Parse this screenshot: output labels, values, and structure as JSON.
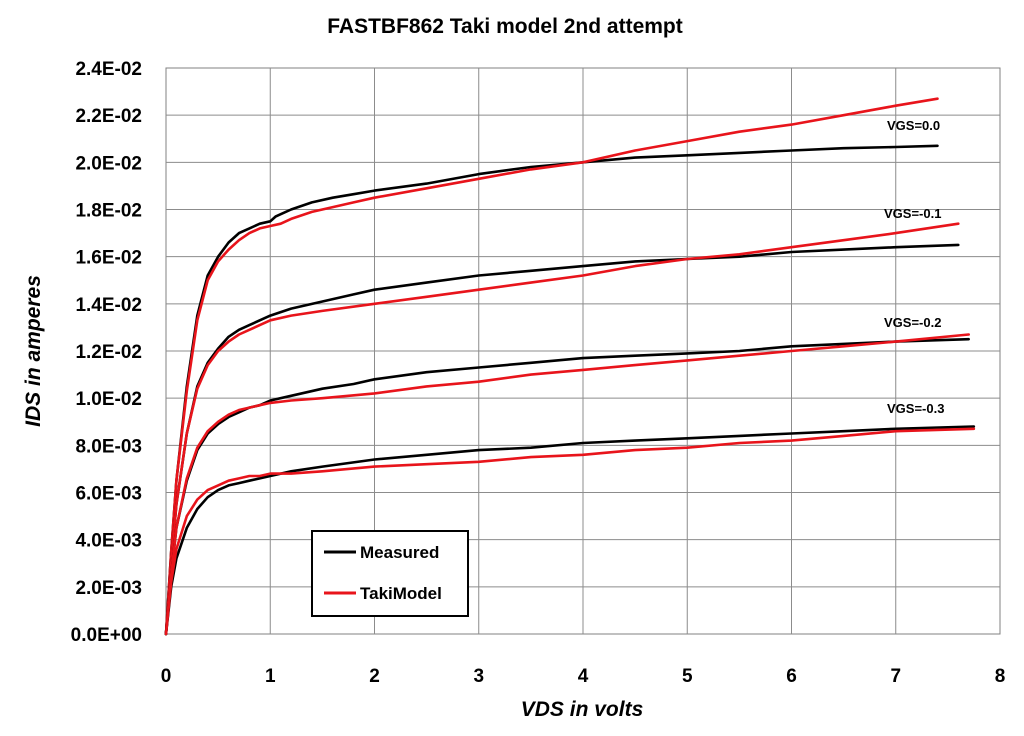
{
  "chart_data": {
    "type": "line",
    "title": "FASTBF862  Taki model   2nd attempt",
    "xlabel": "VDS  in volts",
    "ylabel": "IDS  in amperes",
    "xlim": [
      0,
      8
    ],
    "ylim": [
      0,
      0.024
    ],
    "x_ticks": [
      "0",
      "1",
      "2",
      "3",
      "4",
      "5",
      "6",
      "7",
      "8"
    ],
    "y_ticks": [
      "0.0E+00",
      "2.0E-03",
      "4.0E-03",
      "6.0E-03",
      "8.0E-03",
      "1.0E-02",
      "1.2E-02",
      "1.4E-02",
      "1.6E-02",
      "1.8E-02",
      "2.0E-02",
      "2.2E-02",
      "2.4E-02"
    ],
    "grid": true,
    "legend_position": "bottom-left",
    "legend": [
      {
        "label": "Measured",
        "color": "#000000"
      },
      {
        "label": "TakiModel",
        "color": "#e8141b"
      }
    ],
    "annotations": [
      "VGS=0.0",
      "VGS=-0.1",
      "VGS=-0.2",
      "VGS=-0.3"
    ],
    "series": [
      {
        "legend_entry": "Measured",
        "vgs": "VGS=0.0",
        "color": "#000000",
        "points": [
          [
            0,
            0
          ],
          [
            0.05,
            0.0035
          ],
          [
            0.1,
            0.0065
          ],
          [
            0.2,
            0.0105
          ],
          [
            0.3,
            0.0135
          ],
          [
            0.4,
            0.0152
          ],
          [
            0.5,
            0.016
          ],
          [
            0.6,
            0.0166
          ],
          [
            0.7,
            0.017
          ],
          [
            0.8,
            0.0172
          ],
          [
            0.9,
            0.0174
          ],
          [
            1.0,
            0.0175
          ],
          [
            1.05,
            0.0177
          ],
          [
            1.1,
            0.0178
          ],
          [
            1.2,
            0.018
          ],
          [
            1.4,
            0.0183
          ],
          [
            1.6,
            0.0185
          ],
          [
            1.8,
            0.01865
          ],
          [
            2.0,
            0.0188
          ],
          [
            2.5,
            0.0191
          ],
          [
            3.0,
            0.0195
          ],
          [
            3.5,
            0.0198
          ],
          [
            4.0,
            0.02
          ],
          [
            4.5,
            0.0202
          ],
          [
            5.0,
            0.0203
          ],
          [
            5.5,
            0.0204
          ],
          [
            6.0,
            0.0205
          ],
          [
            6.5,
            0.0206
          ],
          [
            7.0,
            0.02065
          ],
          [
            7.4,
            0.0207
          ]
        ]
      },
      {
        "legend_entry": "TakiModel",
        "vgs": "VGS=0.0",
        "color": "#e8141b",
        "points": [
          [
            0,
            0
          ],
          [
            0.05,
            0.0035
          ],
          [
            0.1,
            0.0065
          ],
          [
            0.2,
            0.0103
          ],
          [
            0.3,
            0.0133
          ],
          [
            0.4,
            0.015
          ],
          [
            0.5,
            0.0158
          ],
          [
            0.6,
            0.0163
          ],
          [
            0.7,
            0.0167
          ],
          [
            0.8,
            0.017
          ],
          [
            0.9,
            0.0172
          ],
          [
            1.0,
            0.0173
          ],
          [
            1.1,
            0.0174
          ],
          [
            1.2,
            0.0176
          ],
          [
            1.4,
            0.0179
          ],
          [
            1.6,
            0.0181
          ],
          [
            1.8,
            0.0183
          ],
          [
            2.0,
            0.0185
          ],
          [
            2.5,
            0.0189
          ],
          [
            3.0,
            0.0193
          ],
          [
            3.5,
            0.0197
          ],
          [
            4.0,
            0.02
          ],
          [
            4.5,
            0.0205
          ],
          [
            5.0,
            0.0209
          ],
          [
            5.5,
            0.0213
          ],
          [
            6.0,
            0.0216
          ],
          [
            6.5,
            0.022
          ],
          [
            7.0,
            0.0224
          ],
          [
            7.4,
            0.0227
          ]
        ]
      },
      {
        "legend_entry": "Measured",
        "vgs": "VGS=-0.1",
        "color": "#000000",
        "points": [
          [
            0,
            0
          ],
          [
            0.05,
            0.003
          ],
          [
            0.1,
            0.0055
          ],
          [
            0.2,
            0.0085
          ],
          [
            0.3,
            0.0105
          ],
          [
            0.4,
            0.0115
          ],
          [
            0.5,
            0.0121
          ],
          [
            0.6,
            0.0126
          ],
          [
            0.7,
            0.0129
          ],
          [
            0.8,
            0.0131
          ],
          [
            0.9,
            0.0133
          ],
          [
            1.0,
            0.0135
          ],
          [
            1.2,
            0.0138
          ],
          [
            1.5,
            0.0141
          ],
          [
            1.8,
            0.0144
          ],
          [
            2.0,
            0.0146
          ],
          [
            2.5,
            0.0149
          ],
          [
            3.0,
            0.0152
          ],
          [
            3.5,
            0.0154
          ],
          [
            4.0,
            0.0156
          ],
          [
            4.5,
            0.0158
          ],
          [
            5.0,
            0.0159
          ],
          [
            5.5,
            0.016
          ],
          [
            6.0,
            0.0162
          ],
          [
            6.5,
            0.0163
          ],
          [
            7.0,
            0.0164
          ],
          [
            7.6,
            0.0165
          ]
        ]
      },
      {
        "legend_entry": "TakiModel",
        "vgs": "VGS=-0.1",
        "color": "#e8141b",
        "points": [
          [
            0,
            0
          ],
          [
            0.05,
            0.003
          ],
          [
            0.1,
            0.0055
          ],
          [
            0.2,
            0.0085
          ],
          [
            0.3,
            0.0104
          ],
          [
            0.4,
            0.0114
          ],
          [
            0.5,
            0.012
          ],
          [
            0.6,
            0.0124
          ],
          [
            0.7,
            0.0127
          ],
          [
            0.8,
            0.0129
          ],
          [
            0.9,
            0.0131
          ],
          [
            1.0,
            0.0133
          ],
          [
            1.2,
            0.0135
          ],
          [
            1.5,
            0.0137
          ],
          [
            2.0,
            0.014
          ],
          [
            2.5,
            0.0143
          ],
          [
            3.0,
            0.0146
          ],
          [
            3.5,
            0.0149
          ],
          [
            4.0,
            0.0152
          ],
          [
            4.5,
            0.0156
          ],
          [
            5.0,
            0.0159
          ],
          [
            5.5,
            0.0161
          ],
          [
            6.0,
            0.0164
          ],
          [
            6.5,
            0.0167
          ],
          [
            7.0,
            0.017
          ],
          [
            7.6,
            0.0174
          ]
        ]
      },
      {
        "legend_entry": "Measured",
        "vgs": "VGS=-0.2",
        "color": "#000000",
        "points": [
          [
            0,
            0
          ],
          [
            0.05,
            0.0025
          ],
          [
            0.1,
            0.0045
          ],
          [
            0.2,
            0.0065
          ],
          [
            0.3,
            0.0078
          ],
          [
            0.4,
            0.0085
          ],
          [
            0.5,
            0.0089
          ],
          [
            0.6,
            0.0092
          ],
          [
            0.7,
            0.0094
          ],
          [
            0.8,
            0.0096
          ],
          [
            0.9,
            0.0097
          ],
          [
            1.0,
            0.0099
          ],
          [
            1.2,
            0.0101
          ],
          [
            1.5,
            0.0104
          ],
          [
            1.8,
            0.0106
          ],
          [
            2.0,
            0.0108
          ],
          [
            2.5,
            0.0111
          ],
          [
            3.0,
            0.0113
          ],
          [
            3.5,
            0.0115
          ],
          [
            4.0,
            0.0117
          ],
          [
            4.5,
            0.0118
          ],
          [
            5.0,
            0.0119
          ],
          [
            5.5,
            0.012
          ],
          [
            6.0,
            0.0122
          ],
          [
            6.5,
            0.0123
          ],
          [
            7.0,
            0.0124
          ],
          [
            7.7,
            0.0125
          ]
        ]
      },
      {
        "legend_entry": "TakiModel",
        "vgs": "VGS=-0.2",
        "color": "#e8141b",
        "points": [
          [
            0,
            0
          ],
          [
            0.05,
            0.0025
          ],
          [
            0.1,
            0.0045
          ],
          [
            0.2,
            0.0066
          ],
          [
            0.3,
            0.0079
          ],
          [
            0.4,
            0.0086
          ],
          [
            0.5,
            0.009
          ],
          [
            0.6,
            0.0093
          ],
          [
            0.7,
            0.0095
          ],
          [
            0.8,
            0.0096
          ],
          [
            0.9,
            0.0097
          ],
          [
            1.0,
            0.0098
          ],
          [
            1.2,
            0.0099
          ],
          [
            1.5,
            0.01
          ],
          [
            2.0,
            0.0102
          ],
          [
            2.5,
            0.0105
          ],
          [
            3.0,
            0.0107
          ],
          [
            3.5,
            0.011
          ],
          [
            4.0,
            0.0112
          ],
          [
            4.5,
            0.0114
          ],
          [
            5.0,
            0.0116
          ],
          [
            5.5,
            0.0118
          ],
          [
            6.0,
            0.012
          ],
          [
            6.5,
            0.0122
          ],
          [
            7.0,
            0.0124
          ],
          [
            7.7,
            0.0127
          ]
        ]
      },
      {
        "legend_entry": "Measured",
        "vgs": "VGS=-0.3",
        "color": "#000000",
        "points": [
          [
            0,
            0
          ],
          [
            0.05,
            0.002
          ],
          [
            0.1,
            0.0032
          ],
          [
            0.2,
            0.0045
          ],
          [
            0.3,
            0.0053
          ],
          [
            0.4,
            0.0058
          ],
          [
            0.5,
            0.0061
          ],
          [
            0.6,
            0.0063
          ],
          [
            0.7,
            0.0064
          ],
          [
            0.8,
            0.0065
          ],
          [
            0.9,
            0.0066
          ],
          [
            1.0,
            0.0067
          ],
          [
            1.2,
            0.0069
          ],
          [
            1.5,
            0.0071
          ],
          [
            2.0,
            0.0074
          ],
          [
            2.5,
            0.0076
          ],
          [
            3.0,
            0.0078
          ],
          [
            3.5,
            0.0079
          ],
          [
            4.0,
            0.0081
          ],
          [
            4.5,
            0.0082
          ],
          [
            5.0,
            0.0083
          ],
          [
            5.5,
            0.0084
          ],
          [
            6.0,
            0.0085
          ],
          [
            6.5,
            0.0086
          ],
          [
            7.0,
            0.0087
          ],
          [
            7.75,
            0.0088
          ]
        ]
      },
      {
        "legend_entry": "TakiModel",
        "vgs": "VGS=-0.3",
        "color": "#e8141b",
        "points": [
          [
            0,
            0
          ],
          [
            0.05,
            0.0022
          ],
          [
            0.1,
            0.0036
          ],
          [
            0.2,
            0.005
          ],
          [
            0.3,
            0.0057
          ],
          [
            0.4,
            0.0061
          ],
          [
            0.5,
            0.0063
          ],
          [
            0.6,
            0.0065
          ],
          [
            0.7,
            0.0066
          ],
          [
            0.8,
            0.0067
          ],
          [
            0.9,
            0.0067
          ],
          [
            1.0,
            0.0068
          ],
          [
            1.2,
            0.0068
          ],
          [
            1.5,
            0.0069
          ],
          [
            2.0,
            0.0071
          ],
          [
            2.5,
            0.0072
          ],
          [
            3.0,
            0.0073
          ],
          [
            3.5,
            0.0075
          ],
          [
            4.0,
            0.0076
          ],
          [
            4.5,
            0.0078
          ],
          [
            5.0,
            0.0079
          ],
          [
            5.5,
            0.0081
          ],
          [
            6.0,
            0.0082
          ],
          [
            6.5,
            0.0084
          ],
          [
            7.0,
            0.0086
          ],
          [
            7.75,
            0.0087
          ]
        ]
      }
    ]
  }
}
